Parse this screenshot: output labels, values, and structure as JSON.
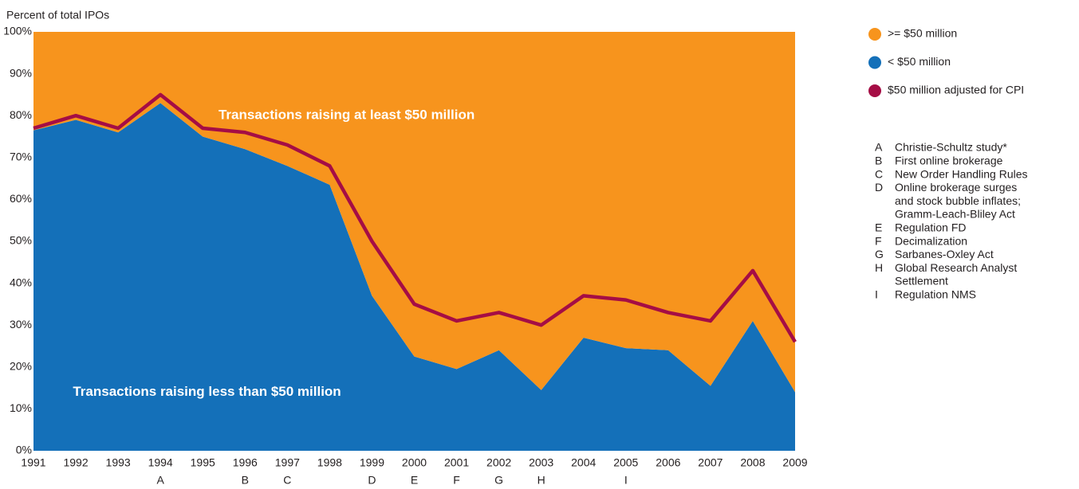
{
  "chart_data": {
    "type": "stacked-area",
    "y_axis_label": "Percent of total IPOs",
    "x": [
      1991,
      1992,
      1993,
      1994,
      1995,
      1996,
      1997,
      1998,
      1999,
      2000,
      2001,
      2002,
      2003,
      2004,
      2005,
      2006,
      2007,
      2008,
      2009
    ],
    "xlim": [
      1991,
      2009
    ],
    "xticks": [
      1991,
      1992,
      1993,
      1994,
      1995,
      1996,
      1997,
      1998,
      1999,
      2000,
      2001,
      2002,
      2003,
      2004,
      2005,
      2006,
      2007,
      2008,
      2009
    ],
    "ylim": [
      0,
      100
    ],
    "yticks": [
      {
        "value": 0,
        "label": "0%"
      },
      {
        "value": 10,
        "label": "10%"
      },
      {
        "value": 20,
        "label": "20%"
      },
      {
        "value": 30,
        "label": "30%"
      },
      {
        "value": 40,
        "label": "40%"
      },
      {
        "value": 50,
        "label": "50%"
      },
      {
        "value": 60,
        "label": "60%"
      },
      {
        "value": 70,
        "label": "70%"
      },
      {
        "value": 80,
        "label": "80%"
      },
      {
        "value": 90,
        "label": "90%"
      },
      {
        "value": 100,
        "label": "100%"
      }
    ],
    "series": [
      {
        "name": "< $50 million",
        "color": "#1470b9",
        "kind": "area",
        "values": [
          76.5,
          79,
          76,
          83,
          75,
          72,
          68,
          63.5,
          37,
          22.5,
          19.5,
          24,
          14.5,
          27,
          24.5,
          24,
          15.5,
          31,
          14
        ]
      },
      {
        "name": ">= $50 million",
        "color": "#f7941d",
        "kind": "area",
        "values": [
          23.5,
          21,
          24,
          17,
          25,
          28,
          32,
          36.5,
          63,
          77.5,
          80.5,
          76,
          85.5,
          73,
          75.5,
          76,
          84.5,
          69,
          86
        ]
      },
      {
        "name": "$50 million adjusted for CPI",
        "color": "#a50d45",
        "kind": "line",
        "values": [
          77,
          80,
          77,
          85,
          77,
          76,
          73,
          68,
          50,
          35,
          31,
          33,
          30,
          37,
          36,
          33,
          31,
          43,
          26
        ]
      }
    ],
    "legend_order": [
      1,
      0,
      2
    ],
    "area_labels": [
      {
        "text": "Transactions raising at least $50 million",
        "x": 1998.4,
        "y": 80
      },
      {
        "text": "Transactions raising less than $50 million",
        "x": 1995.1,
        "y": 14
      }
    ],
    "annotations": [
      {
        "letter": "A",
        "x": 1994,
        "text": [
          "Christie-Schultz study*"
        ]
      },
      {
        "letter": "B",
        "x": 1996,
        "text": [
          "First online brokerage"
        ]
      },
      {
        "letter": "C",
        "x": 1997,
        "text": [
          "New Order Handling Rules"
        ]
      },
      {
        "letter": "D",
        "x": 1999,
        "text": [
          "Online brokerage surges",
          "and stock bubble inflates;",
          "Gramm-Leach-Bliley Act"
        ]
      },
      {
        "letter": "E",
        "x": 2000,
        "text": [
          "Regulation FD"
        ]
      },
      {
        "letter": "F",
        "x": 2001,
        "text": [
          "Decimalization"
        ]
      },
      {
        "letter": "G",
        "x": 2002,
        "text": [
          "Sarbanes-Oxley Act"
        ]
      },
      {
        "letter": "H",
        "x": 2003,
        "text": [
          "Global Research Analyst",
          "Settlement"
        ]
      },
      {
        "letter": "I",
        "x": 2005,
        "text": [
          "Regulation NMS"
        ]
      }
    ]
  }
}
